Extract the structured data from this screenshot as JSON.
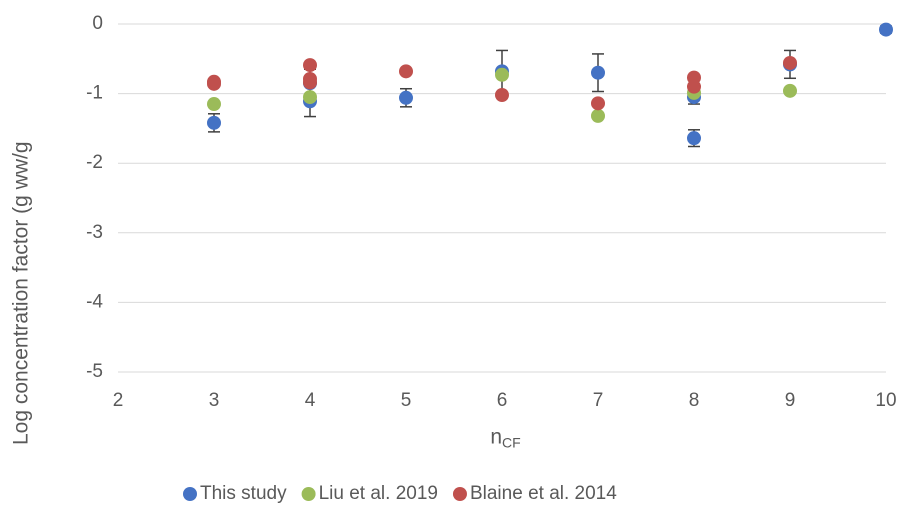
{
  "chart_data": {
    "type": "scatter",
    "ylabel": "Log concentration factor (g ww/g",
    "xlabel": "n",
    "xlabel_sub": "CF",
    "xlim": [
      2,
      10
    ],
    "xticks": [
      2,
      3,
      4,
      5,
      6,
      7,
      8,
      9,
      10
    ],
    "ylim": [
      -5,
      0
    ],
    "yticks": [
      0,
      -1,
      -2,
      -3,
      -4,
      -5
    ],
    "grid": true,
    "legend": "bottom",
    "series": [
      {
        "name": "This study",
        "color": "#4472c4",
        "x": [
          3,
          4,
          4,
          5,
          6,
          7,
          8,
          8,
          9,
          10
        ],
        "values": [
          -1.42,
          -1.11,
          -0.85,
          -1.06,
          -0.68,
          -0.7,
          -1.05,
          -1.64,
          -0.58,
          -0.08
        ],
        "errors": [
          0.13,
          0.22,
          0.2,
          0.13,
          0.3,
          0.27,
          0.1,
          0.12,
          0.2,
          0.05
        ]
      },
      {
        "name": "Liu et al. 2019",
        "color": "#9bbb59",
        "x": [
          3,
          4,
          6,
          7,
          8,
          9
        ],
        "values": [
          -1.15,
          -1.05,
          -0.73,
          -1.32,
          -0.99,
          -0.96
        ]
      },
      {
        "name": "Blaine et al. 2014",
        "color": "#c0504d",
        "x": [
          3,
          3,
          4,
          4,
          4,
          5,
          6,
          7,
          8,
          8,
          9
        ],
        "values": [
          -0.83,
          -0.86,
          -0.59,
          -0.79,
          -0.84,
          -0.68,
          -1.02,
          -1.14,
          -0.77,
          -0.9,
          -0.56
        ]
      }
    ]
  }
}
